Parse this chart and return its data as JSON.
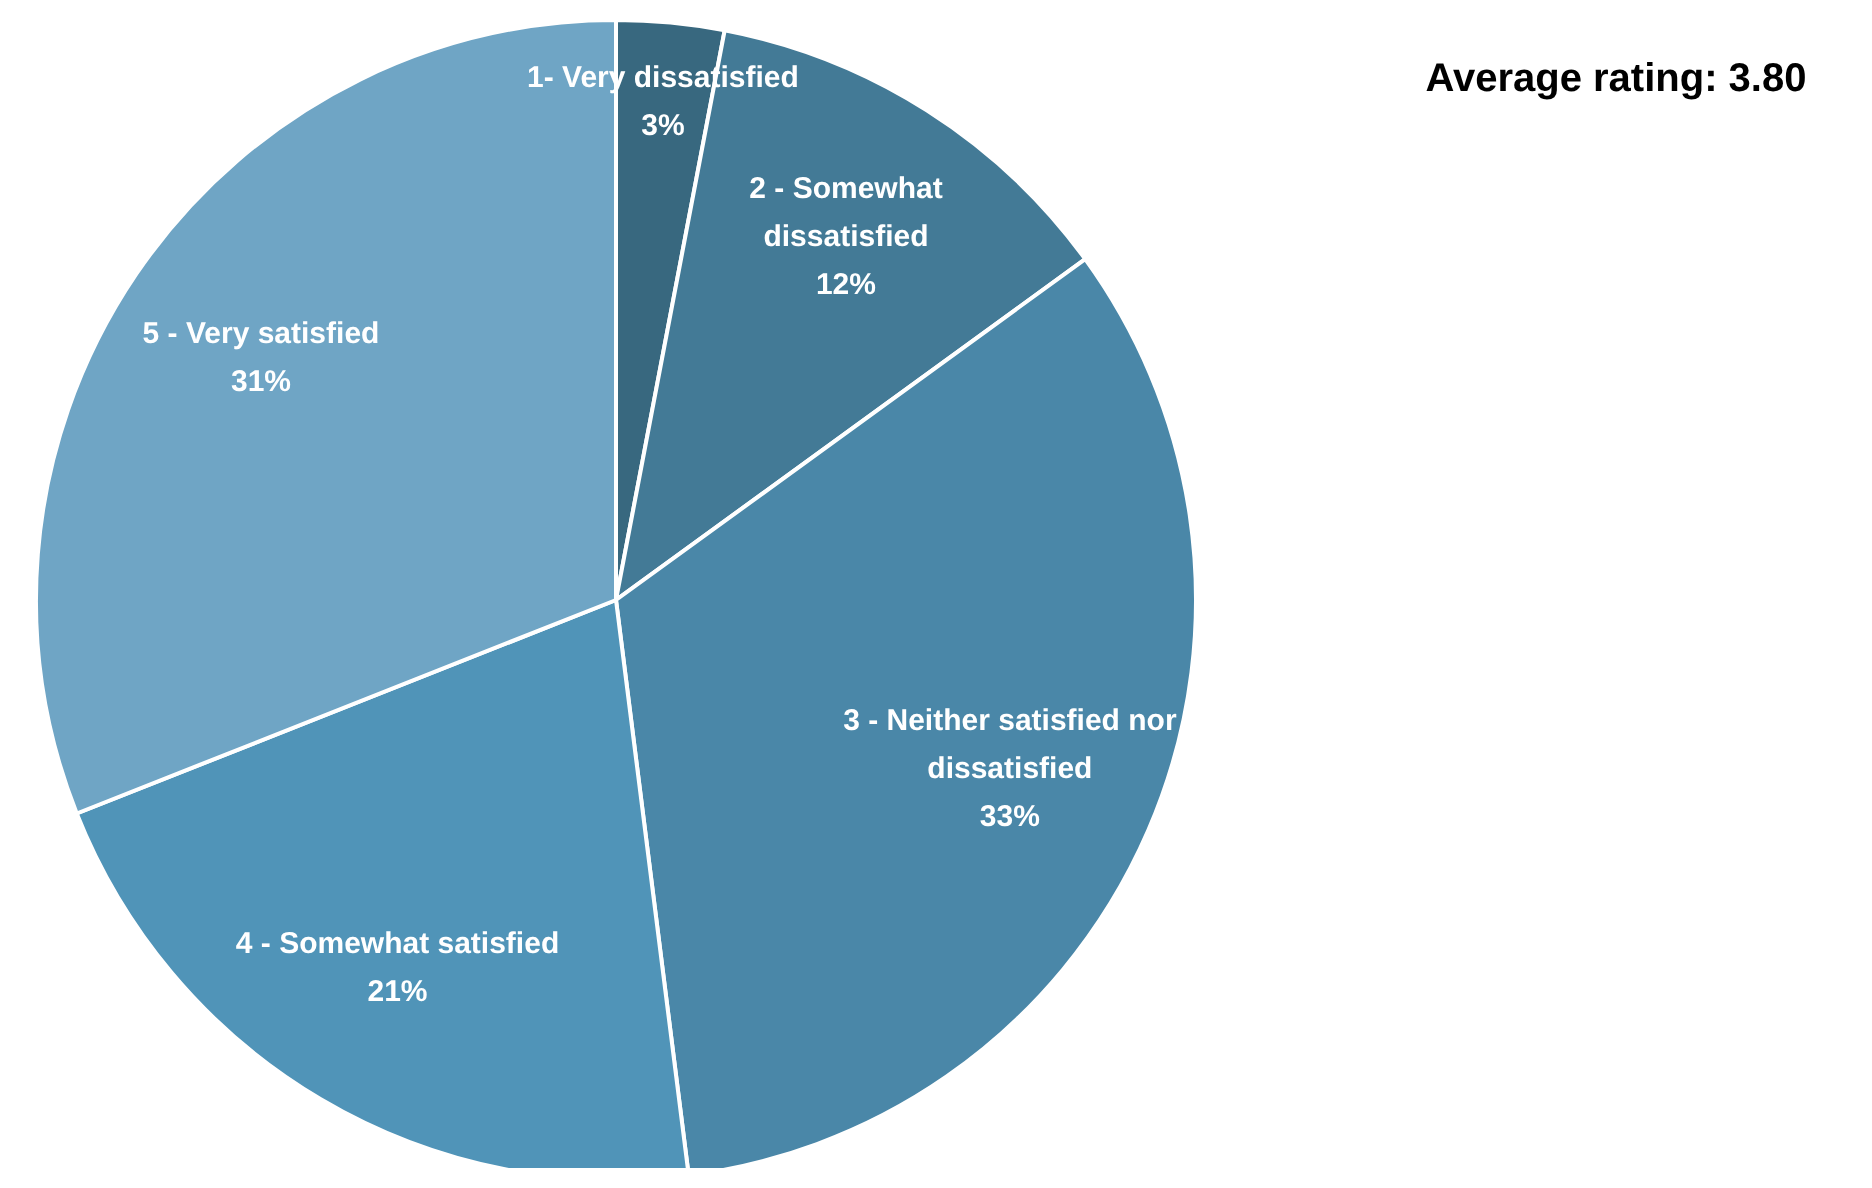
{
  "chart_data": {
    "type": "pie",
    "title": "Average rating: 3.80",
    "categories": [
      "1- Very dissatisfied",
      "2 - Somewhat dissatisfied",
      "3 - Neither satisfied nor dissatisfied",
      "4 - Somewhat satisfied",
      "5 - Very satisfied"
    ],
    "values": [
      3,
      12,
      33,
      21,
      31
    ],
    "value_labels": [
      "3%",
      "12%",
      "33%",
      "21%",
      "31%"
    ],
    "colors": [
      "#38687f",
      "#437a96",
      "#4a87a8",
      "#5094b8",
      "#6fa5c5"
    ]
  }
}
